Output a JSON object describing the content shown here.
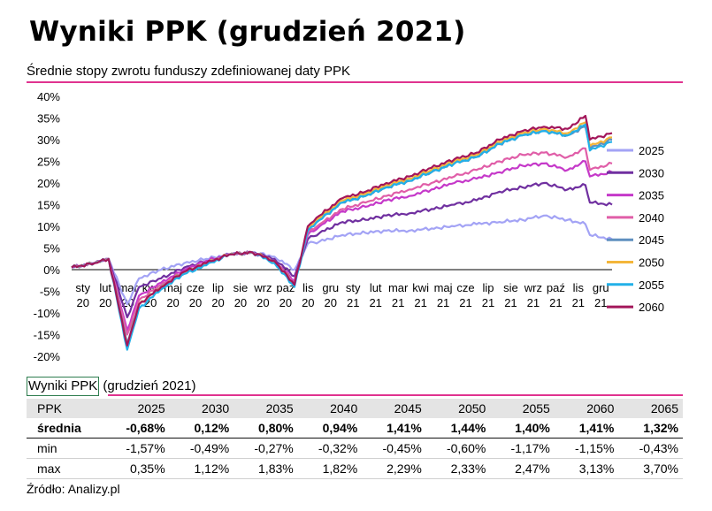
{
  "title": "Wyniki PPK (grudzień 2021)",
  "subtitle": "Średnie stopy zwrotu funduszy zdefiniowanej daty PPK",
  "colors": {
    "accent_rule": "#e0338f",
    "s2025": "#a3a3f5",
    "s2030": "#7030a0",
    "s2035": "#c539c9",
    "s2040": "#e05ea8",
    "s2045": "#5f8fbf",
    "s2050": "#f4b63a",
    "s2055": "#22b0e8",
    "s2060": "#a3165a"
  },
  "chart_data": {
    "type": "line",
    "title": "Średnie stopy zwrotu funduszy zdefiniowanej daty PPK",
    "xlabel": "",
    "ylabel": "",
    "ylim": [
      -20,
      40
    ],
    "y_ticks": [
      "-20%",
      "-15%",
      "-10%",
      "-5%",
      "0%",
      "5%",
      "10%",
      "15%",
      "20%",
      "25%",
      "30%",
      "35%",
      "40%"
    ],
    "x_tick_labels": [
      [
        "sty",
        "20"
      ],
      [
        "lut",
        "20"
      ],
      [
        "mar",
        "20"
      ],
      [
        "kwi",
        "20"
      ],
      [
        "maj",
        "20"
      ],
      [
        "cze",
        "20"
      ],
      [
        "lip",
        "20"
      ],
      [
        "sie",
        "20"
      ],
      [
        "wrz",
        "20"
      ],
      [
        "paź",
        "20"
      ],
      [
        "lis",
        "20"
      ],
      [
        "gru",
        "20"
      ],
      [
        "sty",
        "21"
      ],
      [
        "lut",
        "21"
      ],
      [
        "mar",
        "21"
      ],
      [
        "kwi",
        "21"
      ],
      [
        "maj",
        "21"
      ],
      [
        "cze",
        "21"
      ],
      [
        "lip",
        "21"
      ],
      [
        "sie",
        "21"
      ],
      [
        "wrz",
        "21"
      ],
      [
        "paź",
        "21"
      ],
      [
        "lis",
        "21"
      ],
      [
        "gru",
        "21"
      ]
    ],
    "grid": false,
    "legend_position": "right",
    "x": [
      "2020-01-01",
      "2020-02-01",
      "2020-02-20",
      "2020-03-16",
      "2020-04-01",
      "2020-05-01",
      "2020-06-01",
      "2020-07-01",
      "2020-08-01",
      "2020-09-01",
      "2020-10-01",
      "2020-10-28",
      "2020-11-15",
      "2020-12-01",
      "2021-01-01",
      "2021-02-01",
      "2021-03-01",
      "2021-04-01",
      "2021-05-01",
      "2021-06-01",
      "2021-07-01",
      "2021-08-01",
      "2021-09-01",
      "2021-09-30",
      "2021-11-01",
      "2021-11-25",
      "2021-12-01",
      "2021-12-31"
    ],
    "series": [
      {
        "name": "2025",
        "color_key": "s2025",
        "values": [
          0.5,
          1.5,
          2.5,
          -8,
          -2,
          0,
          1.5,
          2.5,
          3.5,
          4,
          3,
          0,
          6,
          6.5,
          8,
          8.5,
          9,
          9,
          9.5,
          10,
          10.5,
          11,
          11.5,
          12.5,
          11.5,
          10.5,
          8,
          7
        ]
      },
      {
        "name": "2030",
        "color_key": "s2030",
        "values": [
          0.5,
          1.5,
          2.5,
          -11,
          -4,
          -2,
          0.5,
          2,
          3.5,
          4,
          2.5,
          -1.5,
          7,
          8.5,
          11,
          11.5,
          12.5,
          13,
          14,
          15,
          16,
          18,
          19,
          20,
          18.5,
          19.5,
          15.5,
          15
        ]
      },
      {
        "name": "2035",
        "color_key": "s2035",
        "values": [
          0.5,
          1.5,
          2.5,
          -14,
          -6,
          -3,
          0,
          2,
          3.5,
          4,
          2,
          -2.5,
          8,
          10,
          13.5,
          14.5,
          16,
          17,
          18.5,
          20,
          21,
          22.5,
          24,
          24.5,
          23,
          25,
          21.5,
          22.5
        ]
      },
      {
        "name": "2040",
        "color_key": "s2040",
        "values": [
          0.5,
          1.5,
          2.5,
          -15,
          -7,
          -3.5,
          -0.5,
          1.5,
          3.5,
          4,
          2,
          -3,
          8.5,
          10.5,
          14,
          15.5,
          17,
          18.5,
          20,
          21.5,
          23,
          25,
          26.5,
          27,
          26,
          28,
          23,
          24.5
        ]
      },
      {
        "name": "2045",
        "color_key": "s2045",
        "values": [
          0.5,
          1.5,
          2.5,
          -17,
          -8,
          -4,
          -0.5,
          1.5,
          3.5,
          4,
          2,
          -3.5,
          9,
          11.5,
          15.5,
          17,
          19,
          20.5,
          22.5,
          24.5,
          26,
          29,
          31,
          32,
          31,
          33,
          28,
          30
        ]
      },
      {
        "name": "2050",
        "color_key": "s2050",
        "values": [
          0.5,
          1.5,
          2.5,
          -17.5,
          -8,
          -4,
          -0.5,
          1.5,
          3.5,
          4,
          2,
          -3.5,
          9.5,
          12,
          16,
          17.5,
          19.5,
          21,
          23,
          25,
          26.5,
          29.5,
          31.5,
          32.5,
          31.5,
          34,
          28.5,
          30.5
        ]
      },
      {
        "name": "2055",
        "color_key": "s2055",
        "values": [
          0.5,
          1.5,
          2.5,
          -18.5,
          -9,
          -4.5,
          -1,
          1,
          3.5,
          4,
          1.5,
          -4,
          9,
          11.5,
          15.5,
          17,
          19,
          20.5,
          22.5,
          24.5,
          26,
          29,
          31,
          32,
          31,
          33.5,
          27.5,
          29.5
        ]
      },
      {
        "name": "2060",
        "color_key": "s2060",
        "values": [
          0.5,
          1.5,
          2.5,
          -17.5,
          -8,
          -4,
          -0.5,
          1.5,
          3.5,
          4,
          2,
          -3.5,
          10,
          12.5,
          16.5,
          18,
          20,
          21.5,
          23.5,
          25.5,
          27,
          30,
          32,
          33,
          32.5,
          35.5,
          30,
          31.5
        ]
      }
    ]
  },
  "table": {
    "caption_boxed": "Wyniki PPK",
    "caption_rest": " (grudzień 2021)",
    "headers": [
      "PPK",
      "2025",
      "2030",
      "2035",
      "2040",
      "2045",
      "2050",
      "2055",
      "2060",
      "2065"
    ],
    "rows": [
      {
        "label": "średnia",
        "values": [
          "-0,68%",
          "0,12%",
          "0,80%",
          "0,94%",
          "1,41%",
          "1,44%",
          "1,40%",
          "1,41%",
          "1,32%"
        ],
        "bold": true
      },
      {
        "label": "min",
        "values": [
          "-1,57%",
          "-0,49%",
          "-0,27%",
          "-0,32%",
          "-0,45%",
          "-0,60%",
          "-1,17%",
          "-1,15%",
          "-0,43%"
        ],
        "bold": false
      },
      {
        "label": "max",
        "values": [
          "0,35%",
          "1,12%",
          "1,83%",
          "1,82%",
          "2,29%",
          "2,33%",
          "2,47%",
          "3,13%",
          "3,70%"
        ],
        "bold": false
      }
    ]
  },
  "source": "Źródło: Analizy.pl"
}
